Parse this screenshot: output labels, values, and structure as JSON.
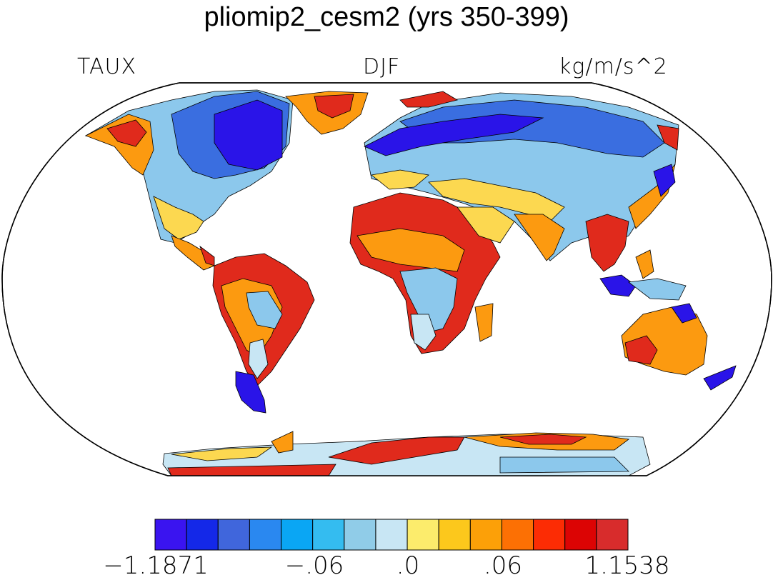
{
  "header": {
    "title": "pliomip2_cesm2 (yrs 350-399)",
    "variable": "TAUX",
    "season": "DJF",
    "units": "kg/m/s^2"
  },
  "colorbar": {
    "colors": [
      "#3a14f0",
      "#1428e8",
      "#4066dc",
      "#2a88f0",
      "#0aa6f4",
      "#34bcf0",
      "#90cce8",
      "#c8e6f4",
      "#fcec6c",
      "#fcc81c",
      "#fca008",
      "#fc7004",
      "#fc2c04",
      "#dc0404",
      "#d82c2c"
    ],
    "tick_labels": [
      "−1.1871",
      "−.06",
      ".0",
      ".06",
      "1.1538"
    ]
  },
  "map": {
    "projection": "robinson",
    "ocean_color": "#ffffff",
    "coastline_color": "#000000",
    "region_colors": {
      "strong_negative": "#2a14e8",
      "negative": "#3a6ee0",
      "weak_negative": "#8cc8ec",
      "near_zero": "#c8e6f4",
      "weak_positive": "#fcd850",
      "positive": "#fc9a10",
      "strong_positive": "#e02a1c"
    }
  }
}
